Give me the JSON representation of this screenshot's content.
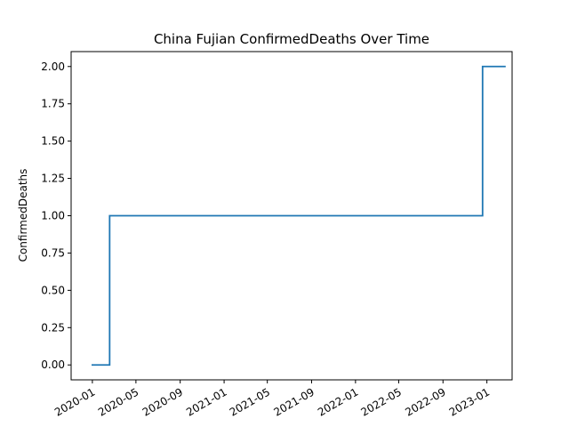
{
  "chart_data": {
    "type": "line",
    "drawstyle": "steps-post",
    "title": "China Fujian ConfirmedDeaths Over Time",
    "xlabel": "",
    "ylabel": "ConfirmedDeaths",
    "x_ticks": [
      "2020-01",
      "2020-05",
      "2020-09",
      "2021-01",
      "2021-05",
      "2021-09",
      "2022-01",
      "2022-05",
      "2022-09",
      "2023-01"
    ],
    "y_ticks": [
      "0.00",
      "0.25",
      "0.50",
      "0.75",
      "1.00",
      "1.25",
      "1.50",
      "1.75",
      "2.00"
    ],
    "xlim": [
      "2019-11-03",
      "2023-03-12"
    ],
    "ylim": [
      -0.1,
      2.1
    ],
    "grid": false,
    "legend": "none",
    "series": [
      {
        "color": "#1f77b4",
        "points": [
          {
            "x": "2020-01-01",
            "y": 0
          },
          {
            "x": "2020-02-18",
            "y": 1
          },
          {
            "x": "2022-12-20",
            "y": 2
          },
          {
            "x": "2023-02-20",
            "y": 2
          }
        ]
      }
    ]
  }
}
